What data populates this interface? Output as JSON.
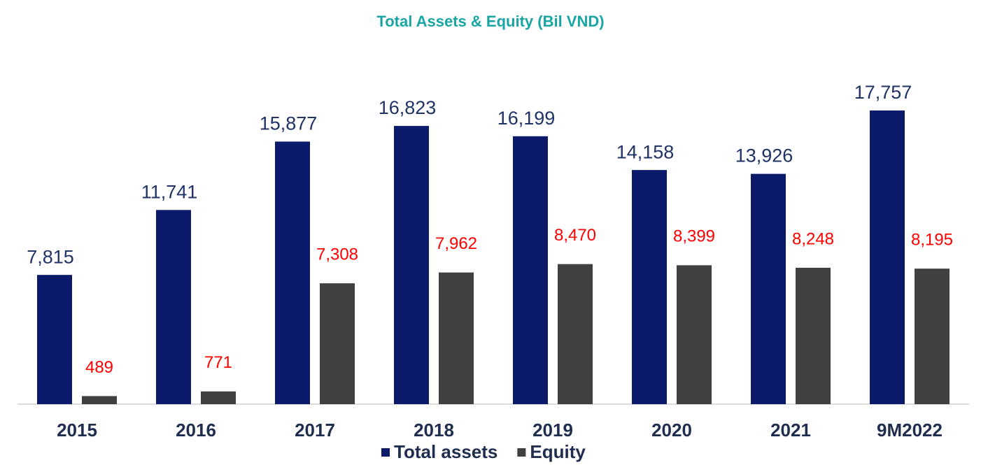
{
  "chart_data": {
    "type": "bar",
    "title": "Total Assets & Equity (Bil VND)",
    "categories": [
      "2015",
      "2016",
      "2017",
      "2018",
      "2019",
      "2020",
      "2021",
      "9M2022"
    ],
    "series": [
      {
        "name": "Total assets",
        "color": "#0b1a6b",
        "values": [
          7815,
          11741,
          15877,
          16823,
          16199,
          14158,
          13926,
          17757
        ],
        "value_labels": [
          "7,815",
          "11,741",
          "15,877",
          "16,823",
          "16,199",
          "14,158",
          "13,926",
          "17,757"
        ],
        "label_color": "#1f3366"
      },
      {
        "name": "Equity",
        "color": "#404040",
        "values": [
          489,
          771,
          7308,
          7962,
          8470,
          8399,
          8248,
          8195
        ],
        "value_labels": [
          "489",
          "771",
          "7,308",
          "7,962",
          "8,470",
          "8,399",
          "8,248",
          "8,195"
        ],
        "label_color": "#ff0000"
      }
    ]
  }
}
